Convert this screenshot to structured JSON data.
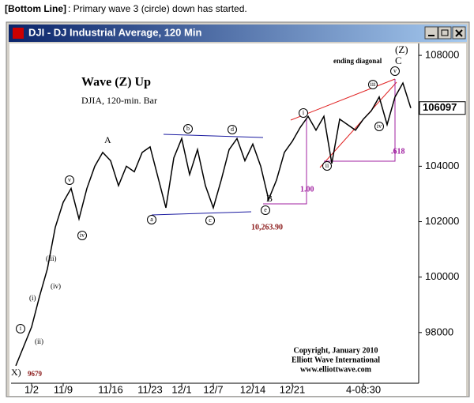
{
  "chart_data": {
    "type": "line",
    "caption_bold": "[Bottom Line]",
    "caption": ": Primary wave 3 (circle) down has started.",
    "window_title": "DJI - DJ Industrial Average, 120 Min",
    "current_price": "106097",
    "categories": [
      null,
      null,
      "1/2",
      null,
      null,
      null,
      "11/9",
      null,
      null,
      null,
      null,
      null,
      "11/16",
      null,
      null,
      null,
      null,
      "11/23",
      null,
      null,
      null,
      "12/1",
      null,
      null,
      null,
      "12/7",
      null,
      null,
      null,
      null,
      "12/14",
      null,
      null,
      null,
      null,
      "12/21",
      null,
      null,
      null,
      null,
      null,
      null,
      null,
      null,
      "4-08:30",
      null,
      null,
      null,
      null,
      null,
      null
    ],
    "series": [
      {
        "name": "DJIA",
        "color": "#000000",
        "values": [
          96800,
          97500,
          98200,
          99300,
          100300,
          101800,
          102700,
          103200,
          102100,
          103200,
          104000,
          104500,
          104200,
          103300,
          104000,
          103800,
          104500,
          104700,
          103600,
          102500,
          104300,
          105000,
          103700,
          104600,
          103300,
          102500,
          103500,
          104600,
          105000,
          104200,
          104800,
          104000,
          102800,
          103500,
          104500,
          104900,
          105400,
          105800,
          105300,
          105800,
          104100,
          105700,
          105500,
          105300,
          105700,
          106000,
          106500,
          105500,
          106500,
          107000,
          106100
        ]
      }
    ],
    "ylim": [
      96170,
      108430
    ],
    "yticks": [
      {
        "value": 98000,
        "label": "98000"
      },
      {
        "value": 100000,
        "label": "100000"
      },
      {
        "value": 102000,
        "label": "102000"
      },
      {
        "value": 104000,
        "label": "104000"
      },
      {
        "value": 106000,
        "label": "106000"
      },
      {
        "value": 108000,
        "label": "108000"
      }
    ],
    "annotations": [
      "Wave (Z) Up",
      "DJIA, 120-min. Bar",
      "ending diagonal",
      "(Z)",
      "C",
      "A",
      "B",
      "10,263.90",
      "X)",
      "9679",
      "1.00",
      ".618",
      "(i)",
      "(ii)",
      "(iii)",
      "(iv)",
      "i",
      "v",
      "iv",
      "a",
      "b",
      "c",
      "d",
      "e",
      "i",
      "ii",
      "iii",
      "iv",
      "v",
      "Copyright, January 2010",
      "Elliott Wave International",
      "www.elliottwave.com"
    ]
  }
}
